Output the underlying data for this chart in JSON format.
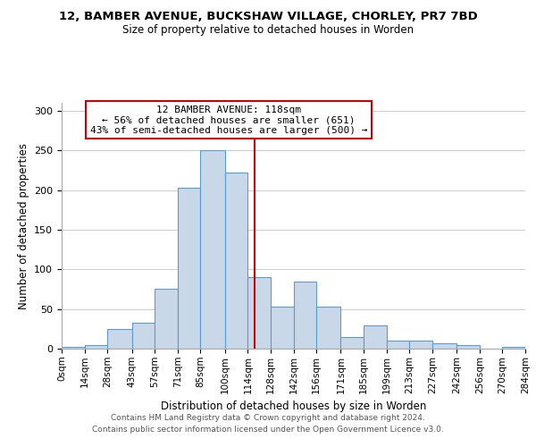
{
  "title_line1": "12, BAMBER AVENUE, BUCKSHAW VILLAGE, CHORLEY, PR7 7BD",
  "title_line2": "Size of property relative to detached houses in Worden",
  "xlabel": "Distribution of detached houses by size in Worden",
  "ylabel": "Number of detached properties",
  "bar_color": "#c8d8e8",
  "bar_edge_color": "#5b9bd5",
  "reference_line_x": 118,
  "reference_line_color": "#cc0000",
  "bin_edges": [
    0,
    14,
    28,
    43,
    57,
    71,
    85,
    100,
    114,
    128,
    142,
    156,
    171,
    185,
    199,
    213,
    227,
    242,
    256,
    270,
    284
  ],
  "bin_labels": [
    "0sqm",
    "14sqm",
    "28sqm",
    "43sqm",
    "57sqm",
    "71sqm",
    "85sqm",
    "100sqm",
    "114sqm",
    "128sqm",
    "142sqm",
    "156sqm",
    "171sqm",
    "185sqm",
    "199sqm",
    "213sqm",
    "227sqm",
    "242sqm",
    "256sqm",
    "270sqm",
    "284sqm"
  ],
  "bar_heights": [
    2,
    4,
    25,
    33,
    75,
    203,
    250,
    222,
    90,
    53,
    85,
    53,
    15,
    29,
    10,
    10,
    7,
    4,
    0,
    2
  ],
  "ylim": [
    0,
    310
  ],
  "yticks": [
    0,
    50,
    100,
    150,
    200,
    250,
    300
  ],
  "annotation_title": "12 BAMBER AVENUE: 118sqm",
  "annotation_line1": "← 56% of detached houses are smaller (651)",
  "annotation_line2": "43% of semi-detached houses are larger (500) →",
  "annotation_box_color": "#ffffff",
  "annotation_box_edge_color": "#cc0000",
  "footer_line1": "Contains HM Land Registry data © Crown copyright and database right 2024.",
  "footer_line2": "Contains public sector information licensed under the Open Government Licence v3.0.",
  "background_color": "#ffffff",
  "grid_color": "#cccccc"
}
